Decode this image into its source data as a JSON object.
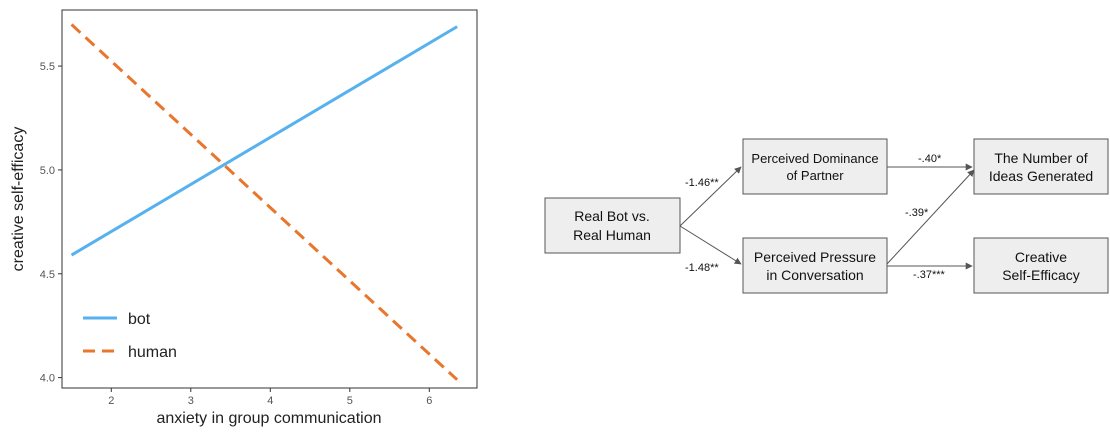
{
  "chart_data": {
    "type": "line",
    "xlabel": "anxiety in group communication",
    "ylabel": "creative self-efficacy",
    "xlim": [
      1.38,
      6.6
    ],
    "ylim": [
      3.95,
      5.77
    ],
    "xticks": [
      "2",
      "3",
      "4",
      "5",
      "6"
    ],
    "yticks": [
      "4.0",
      "4.5",
      "5.0",
      "5.5"
    ],
    "grid": false,
    "legend": "bottom-left",
    "series": [
      {
        "name": "bot",
        "color": "#56B1EE",
        "style": "solid",
        "x": [
          1.5,
          6.35
        ],
        "y": [
          4.59,
          5.69
        ]
      },
      {
        "name": "human",
        "color": "#E8762C",
        "style": "dashed",
        "x": [
          1.5,
          6.35
        ],
        "y": [
          5.7,
          3.99
        ]
      }
    ]
  },
  "diagram": {
    "nodes": {
      "source": [
        "Real Bot vs.",
        "Real Human"
      ],
      "dominance": [
        "Perceived Dominance",
        "of Partner"
      ],
      "pressure": [
        "Perceived Pressure",
        "in Conversation"
      ],
      "ideas": [
        "The Number of",
        "Ideas Generated"
      ],
      "efficacy": [
        "Creative",
        "Self-Efficacy"
      ]
    },
    "coefficients": {
      "source_dominance": "-1.46**",
      "source_pressure": "-1.48**",
      "dominance_ideas": "-.40*",
      "pressure_ideas": "-.39*",
      "pressure_efficacy": "-.37***"
    }
  }
}
